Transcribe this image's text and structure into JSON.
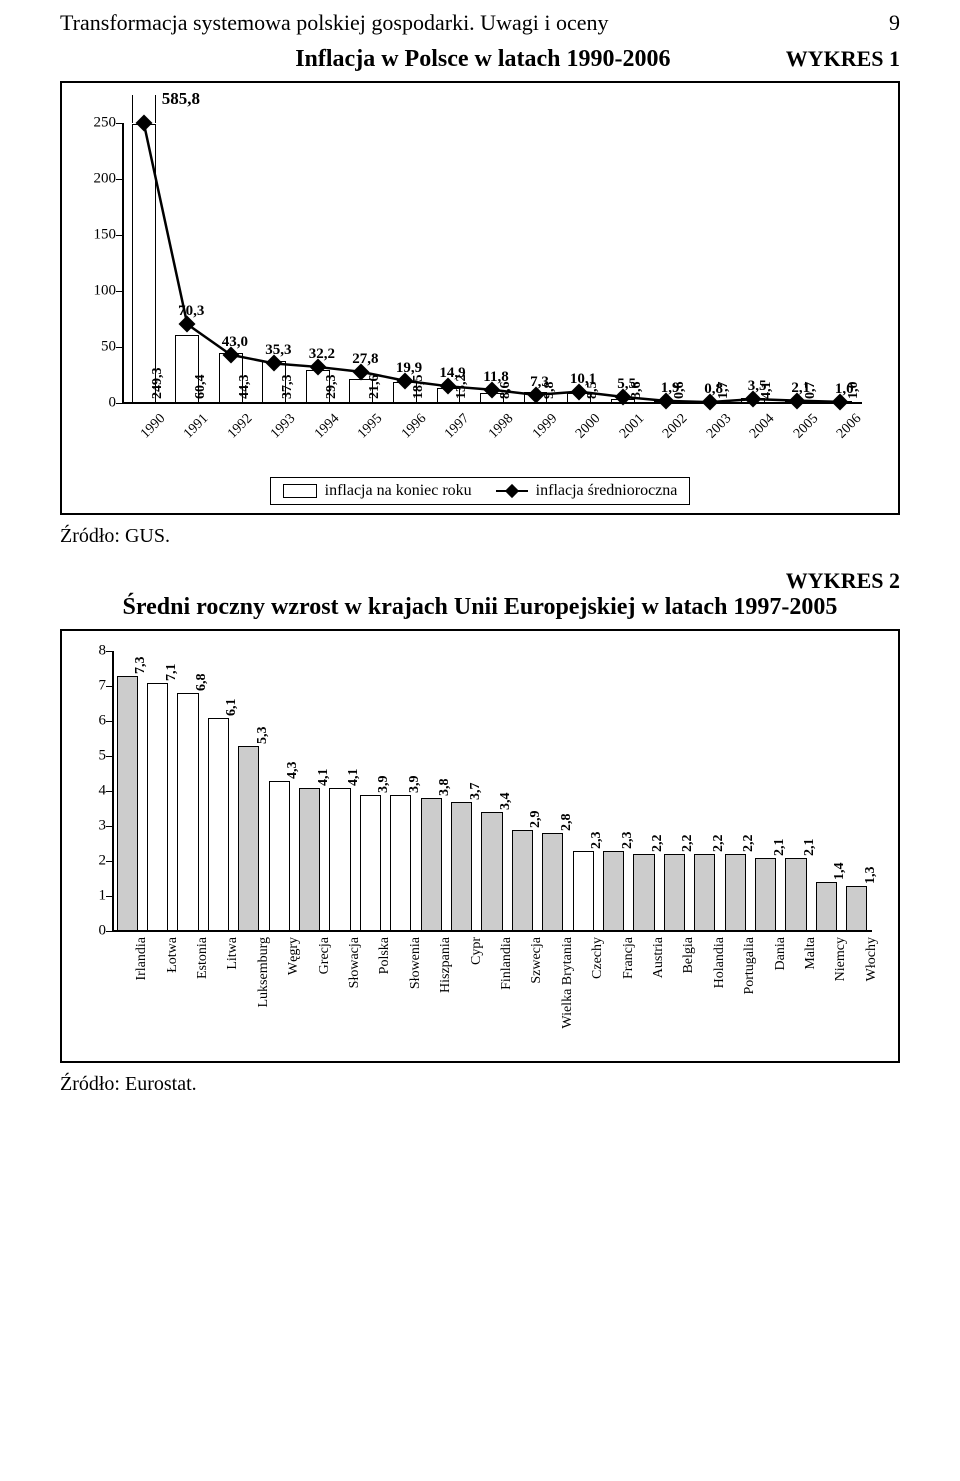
{
  "header": {
    "running_title": "Transformacja systemowa polskiej gospodarki. Uwagi i oceny",
    "page_number": "9"
  },
  "chart1": {
    "label": "WYKRES 1",
    "title": "Inflacja w Polsce w latach 1990-2006",
    "source": "Źródło: GUS.",
    "ylim": [
      0,
      250
    ],
    "ytick_step": 50,
    "axis_fontsize": 15,
    "bar_fill": "#ffffff",
    "bar_border": "#000000",
    "line_color": "#000000",
    "marker": "diamond",
    "years": [
      "1990",
      "1991",
      "1992",
      "1993",
      "1994",
      "1995",
      "1996",
      "1997",
      "1998",
      "1999",
      "2000",
      "2001",
      "2002",
      "2003",
      "2004",
      "2005",
      "2006"
    ],
    "bar_values": [
      249.3,
      60.4,
      44.3,
      37.3,
      29.3,
      21.6,
      18.5,
      13.2,
      8.6,
      9.8,
      8.5,
      3.6,
      0.6,
      1.7,
      4.1,
      0.7,
      1.0
    ],
    "bar_value_labels": [
      "249,3",
      "60,4",
      "44,3",
      "37,3",
      "29,3",
      "21,6",
      "18,5",
      "13,2",
      "8,6",
      "9,8",
      "8,5",
      "3,6",
      "0,6",
      "1,7",
      "4,1",
      "0,7",
      "1,0"
    ],
    "bar_overflow_label": "585,8",
    "line_values": [
      585.8,
      70.3,
      43.0,
      35.3,
      32.2,
      27.8,
      19.9,
      14.9,
      11.8,
      7.3,
      10.1,
      5.5,
      1.9,
      0.8,
      3.5,
      2.1,
      1.0
    ],
    "line_labels": [
      "585,8",
      "70,3",
      "43,0",
      "35,3",
      "32,2",
      "27,8",
      "19,9",
      "14,9",
      "11,8",
      "7,3",
      "10,1",
      "5,5",
      "1,9",
      "0,8",
      "3,5",
      "2,1",
      "1,0"
    ],
    "legend_bar": "inflacja na koniec roku",
    "legend_line": "inflacja średnioroczna"
  },
  "chart2": {
    "label": "WYKRES 2",
    "title": "Średni roczny wzrost w krajach Unii Europejskiej w latach 1997-2005",
    "source": "Źródło: Eurostat.",
    "ylim": [
      0,
      8
    ],
    "ytick_step": 1,
    "axis_fontsize": 15,
    "bar_fill_default": "#ffffff",
    "bar_fill_highlight": "#cccccc",
    "bar_border": "#000000",
    "countries": [
      "Irlandia",
      "Łotwa",
      "Estonia",
      "Litwa",
      "Luksemburg",
      "Węgry",
      "Grecja",
      "Słowacja",
      "Polska",
      "Słowenia",
      "Hiszpania",
      "Cypr",
      "Finlandia",
      "Szwecja",
      "Wielka Brytania",
      "Czechy",
      "Francja",
      "Austria",
      "Belgia",
      "Holandia",
      "Portugalia",
      "Dania",
      "Malta",
      "Niemcy",
      "Włochy"
    ],
    "values": [
      7.3,
      7.1,
      6.8,
      6.1,
      5.3,
      4.3,
      4.1,
      4.1,
      3.9,
      3.9,
      3.8,
      3.7,
      3.4,
      2.9,
      2.8,
      2.3,
      2.3,
      2.2,
      2.2,
      2.2,
      2.2,
      2.1,
      2.1,
      1.4,
      1.3
    ],
    "value_labels": [
      "7,3",
      "7,1",
      "6,8",
      "6,1",
      "5,3",
      "4,3",
      "4,1",
      "4,1",
      "3,9",
      "3,9",
      "3,8",
      "3,7",
      "3,4",
      "2,9",
      "2,8",
      "2,3",
      "2,3",
      "2,2",
      "2,2",
      "2,2",
      "2,2",
      "2,1",
      "2,1",
      "1,4",
      "1,3"
    ],
    "highlight_countries": [
      "Irlandia",
      "Luksemburg",
      "Grecja",
      "Hiszpania",
      "Cypr",
      "Finlandia",
      "Szwecja",
      "Wielka Brytania",
      "Francja",
      "Austria",
      "Belgia",
      "Holandia",
      "Portugalia",
      "Dania",
      "Malta",
      "Niemcy",
      "Włochy"
    ]
  }
}
